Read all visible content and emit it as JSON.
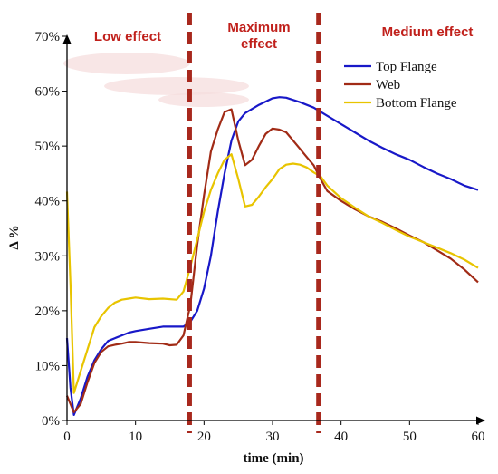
{
  "chart_data": {
    "type": "line",
    "title": "",
    "xlabel": "time (min)",
    "ylabel": "Δ %",
    "xlim": [
      0,
      60
    ],
    "ylim": [
      0,
      0.7
    ],
    "x_ticks": [
      0,
      10,
      20,
      30,
      40,
      50,
      60
    ],
    "x_tick_labels": [
      "0",
      "10",
      "20",
      "30",
      "40",
      "50",
      "60"
    ],
    "y_ticks": [
      0,
      0.1,
      0.2,
      0.3,
      0.4,
      0.5,
      0.6,
      0.7
    ],
    "y_tick_labels": [
      "0%",
      "10%",
      "20%",
      "30%",
      "40%",
      "50%",
      "60%",
      "70%"
    ],
    "grid": false,
    "legend_position": "top-right",
    "zones": [
      {
        "label": "Low effect",
        "lines": [
          "Low effect"
        ],
        "from": 0,
        "to": 17.9
      },
      {
        "label": "Maximum effect",
        "lines": [
          "Maximum",
          "effect"
        ],
        "from": 17.9,
        "to": 36.7
      },
      {
        "label": "Medium effect",
        "lines": [
          "Medium effect"
        ],
        "from": 36.7,
        "to": 60
      }
    ],
    "dividers": [
      17.9,
      36.7
    ],
    "series": [
      {
        "name": "Top Flange",
        "color": "#1818c8",
        "points": [
          [
            0,
            0.15
          ],
          [
            0.5,
            0.06
          ],
          [
            1,
            0.01
          ],
          [
            2,
            0.04
          ],
          [
            3,
            0.08
          ],
          [
            4,
            0.11
          ],
          [
            5,
            0.13
          ],
          [
            6,
            0.145
          ],
          [
            7,
            0.15
          ],
          [
            8,
            0.155
          ],
          [
            9,
            0.16
          ],
          [
            10,
            0.163
          ],
          [
            12,
            0.167
          ],
          [
            14,
            0.171
          ],
          [
            16,
            0.171
          ],
          [
            17,
            0.171
          ],
          [
            18,
            0.18
          ],
          [
            19,
            0.2
          ],
          [
            20,
            0.24
          ],
          [
            21,
            0.3
          ],
          [
            22,
            0.38
          ],
          [
            23,
            0.45
          ],
          [
            24,
            0.51
          ],
          [
            25,
            0.545
          ],
          [
            26,
            0.56
          ],
          [
            28,
            0.575
          ],
          [
            30,
            0.587
          ],
          [
            31,
            0.589
          ],
          [
            32,
            0.588
          ],
          [
            34,
            0.58
          ],
          [
            36,
            0.57
          ],
          [
            38,
            0.555
          ],
          [
            40,
            0.54
          ],
          [
            42,
            0.525
          ],
          [
            44,
            0.51
          ],
          [
            46,
            0.497
          ],
          [
            48,
            0.485
          ],
          [
            50,
            0.475
          ],
          [
            52,
            0.462
          ],
          [
            54,
            0.45
          ],
          [
            56,
            0.44
          ],
          [
            58,
            0.428
          ],
          [
            60,
            0.42
          ]
        ]
      },
      {
        "name": "Web",
        "color": "#a12b16",
        "points": [
          [
            0,
            0.045
          ],
          [
            0.5,
            0.03
          ],
          [
            1,
            0.015
          ],
          [
            2,
            0.03
          ],
          [
            3,
            0.07
          ],
          [
            4,
            0.105
          ],
          [
            5,
            0.125
          ],
          [
            6,
            0.135
          ],
          [
            7,
            0.138
          ],
          [
            8,
            0.14
          ],
          [
            9,
            0.143
          ],
          [
            10,
            0.143
          ],
          [
            12,
            0.141
          ],
          [
            14,
            0.14
          ],
          [
            15,
            0.137
          ],
          [
            16,
            0.138
          ],
          [
            17,
            0.155
          ],
          [
            18,
            0.21
          ],
          [
            19,
            0.32
          ],
          [
            20,
            0.41
          ],
          [
            21,
            0.49
          ],
          [
            22,
            0.53
          ],
          [
            23,
            0.562
          ],
          [
            24,
            0.567
          ],
          [
            25,
            0.51
          ],
          [
            26,
            0.465
          ],
          [
            27,
            0.475
          ],
          [
            28,
            0.5
          ],
          [
            29,
            0.522
          ],
          [
            30,
            0.532
          ],
          [
            31,
            0.53
          ],
          [
            32,
            0.525
          ],
          [
            33,
            0.51
          ],
          [
            34,
            0.495
          ],
          [
            35,
            0.48
          ],
          [
            36,
            0.465
          ],
          [
            37,
            0.44
          ],
          [
            38,
            0.418
          ],
          [
            40,
            0.4
          ],
          [
            42,
            0.385
          ],
          [
            44,
            0.372
          ],
          [
            46,
            0.362
          ],
          [
            48,
            0.35
          ],
          [
            50,
            0.337
          ],
          [
            52,
            0.325
          ],
          [
            54,
            0.31
          ],
          [
            56,
            0.295
          ],
          [
            58,
            0.275
          ],
          [
            60,
            0.252
          ]
        ]
      },
      {
        "name": "Bottom Flange",
        "color": "#e8c400",
        "points": [
          [
            0,
            0.417
          ],
          [
            0.5,
            0.25
          ],
          [
            1,
            0.05
          ],
          [
            2,
            0.09
          ],
          [
            3,
            0.13
          ],
          [
            4,
            0.17
          ],
          [
            5,
            0.19
          ],
          [
            6,
            0.205
          ],
          [
            7,
            0.215
          ],
          [
            8,
            0.22
          ],
          [
            9,
            0.222
          ],
          [
            10,
            0.224
          ],
          [
            12,
            0.221
          ],
          [
            14,
            0.222
          ],
          [
            16,
            0.22
          ],
          [
            17,
            0.235
          ],
          [
            18,
            0.28
          ],
          [
            19,
            0.33
          ],
          [
            20,
            0.38
          ],
          [
            21,
            0.42
          ],
          [
            22,
            0.45
          ],
          [
            23,
            0.475
          ],
          [
            24,
            0.485
          ],
          [
            25,
            0.44
          ],
          [
            26,
            0.39
          ],
          [
            27,
            0.393
          ],
          [
            28,
            0.408
          ],
          [
            29,
            0.425
          ],
          [
            30,
            0.44
          ],
          [
            31,
            0.458
          ],
          [
            32,
            0.466
          ],
          [
            33,
            0.468
          ],
          [
            34,
            0.466
          ],
          [
            35,
            0.461
          ],
          [
            36,
            0.452
          ],
          [
            37,
            0.445
          ],
          [
            38,
            0.428
          ],
          [
            40,
            0.405
          ],
          [
            42,
            0.388
          ],
          [
            44,
            0.372
          ],
          [
            46,
            0.36
          ],
          [
            48,
            0.347
          ],
          [
            50,
            0.335
          ],
          [
            52,
            0.325
          ],
          [
            54,
            0.315
          ],
          [
            56,
            0.305
          ],
          [
            58,
            0.293
          ],
          [
            60,
            0.278
          ]
        ]
      }
    ]
  }
}
